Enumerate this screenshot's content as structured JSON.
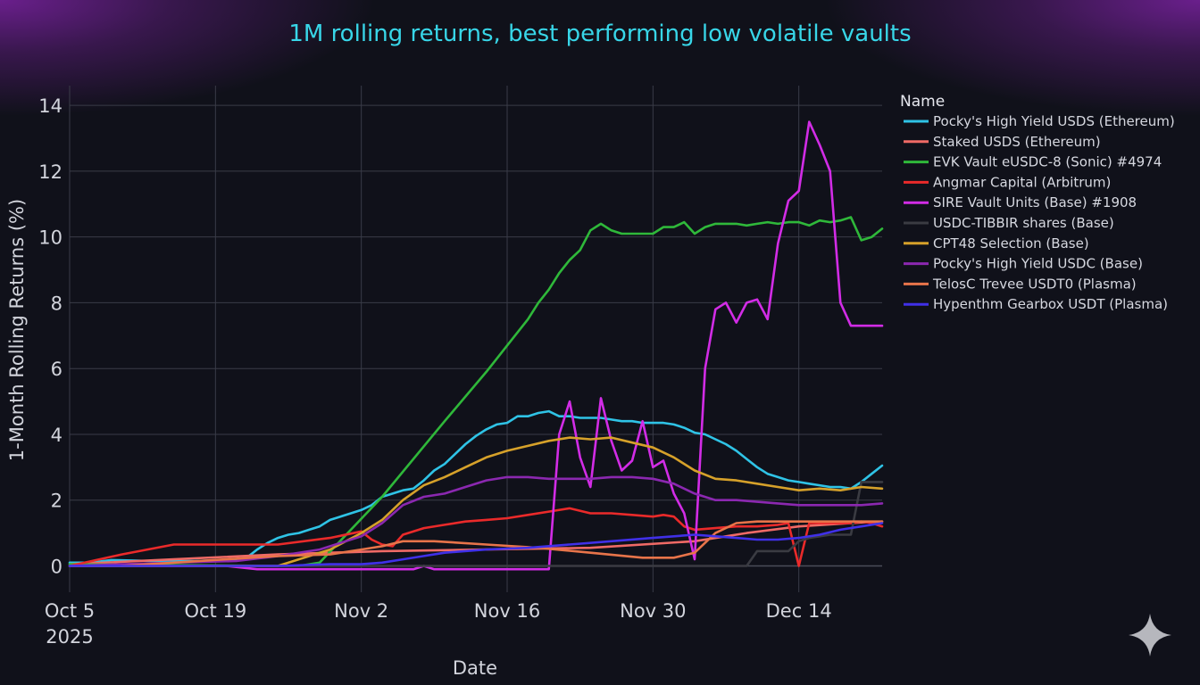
{
  "chart_data": {
    "type": "line",
    "title": "1M rolling returns, best performing low volatile vaults",
    "xlabel": "Date",
    "ylabel": "1-Month Rolling Returns (%)",
    "xlim": [
      0,
      78
    ],
    "ylim": [
      -0.8,
      14.6
    ],
    "yticks": [
      0,
      2,
      4,
      6,
      8,
      10,
      12,
      14
    ],
    "xticks": [
      {
        "day": 0,
        "label": "Oct 5",
        "sublabel": "2025"
      },
      {
        "day": 14,
        "label": "Oct 19"
      },
      {
        "day": 28,
        "label": "Nov 2"
      },
      {
        "day": 42,
        "label": "Nov 16"
      },
      {
        "day": 56,
        "label": "Nov 30"
      },
      {
        "day": 70,
        "label": "Dec 14"
      }
    ],
    "legend_title": "Name",
    "legend_position": "top-right",
    "x_units": "days since Oct 5, 2025",
    "series": [
      {
        "name": "Pocky's High Yield USDS (Ethereum)",
        "color": "#2fc3e6",
        "x": [
          0,
          2,
          4,
          8,
          12,
          16,
          17,
          18,
          19,
          20,
          21,
          22,
          23,
          24,
          25,
          26,
          27,
          28,
          29,
          30,
          31,
          32,
          33,
          34,
          35,
          36,
          37,
          38,
          39,
          40,
          41,
          42,
          43,
          44,
          45,
          46,
          47,
          48,
          49,
          50,
          51,
          52,
          53,
          54,
          55,
          56,
          57,
          58,
          59,
          60,
          61,
          62,
          63,
          64,
          65,
          66,
          67,
          68,
          69,
          70,
          71,
          72,
          73,
          74,
          75,
          76,
          77,
          78
        ],
        "y": [
          0.1,
          0.1,
          0.18,
          0.15,
          0.15,
          0.2,
          0.25,
          0.5,
          0.7,
          0.85,
          0.95,
          1.0,
          1.1,
          1.2,
          1.4,
          1.5,
          1.6,
          1.7,
          1.85,
          2.1,
          2.2,
          2.3,
          2.35,
          2.6,
          2.9,
          3.1,
          3.4,
          3.7,
          3.95,
          4.15,
          4.3,
          4.35,
          4.55,
          4.55,
          4.65,
          4.7,
          4.55,
          4.55,
          4.5,
          4.5,
          4.5,
          4.45,
          4.4,
          4.4,
          4.35,
          4.35,
          4.35,
          4.3,
          4.2,
          4.05,
          4.0,
          3.85,
          3.7,
          3.5,
          3.25,
          3.0,
          2.8,
          2.7,
          2.6,
          2.55,
          2.5,
          2.45,
          2.4,
          2.4,
          2.35,
          2.55,
          2.8,
          3.05
        ]
      },
      {
        "name": "Staked USDS (Ethereum)",
        "color": "#f06a66",
        "x": [
          0,
          10,
          20,
          30,
          40,
          50,
          60,
          65,
          70,
          75,
          78
        ],
        "y": [
          0.05,
          0.2,
          0.35,
          0.45,
          0.5,
          0.55,
          0.75,
          1.0,
          1.2,
          1.3,
          1.35
        ]
      },
      {
        "name": "EVK Vault eUSDC-8 (Sonic) #4974",
        "color": "#2fb83a",
        "x": [
          0,
          20,
          22,
          24,
          30,
          36,
          40,
          44,
          45,
          46,
          47,
          48,
          49,
          50,
          51,
          52,
          53,
          54,
          55,
          56,
          57,
          58,
          59,
          60,
          61,
          62,
          63,
          64,
          65,
          66,
          67,
          68,
          69,
          70,
          71,
          72,
          73,
          74,
          75,
          76,
          77,
          78
        ],
        "y": [
          0.05,
          0.0,
          0.0,
          0.1,
          2.1,
          4.4,
          5.9,
          7.5,
          8.0,
          8.4,
          8.9,
          9.3,
          9.6,
          10.2,
          10.4,
          10.2,
          10.1,
          10.1,
          10.1,
          10.1,
          10.3,
          10.3,
          10.45,
          10.1,
          10.3,
          10.4,
          10.4,
          10.4,
          10.35,
          10.4,
          10.45,
          10.4,
          10.45,
          10.45,
          10.35,
          10.5,
          10.45,
          10.5,
          10.6,
          9.9,
          10.0,
          10.25
        ]
      },
      {
        "name": "Angmar Capital (Arbitrum)",
        "color": "#ea2a2a",
        "x": [
          0,
          5,
          10,
          15,
          20,
          25,
          28,
          29,
          30,
          31,
          32,
          34,
          36,
          38,
          40,
          42,
          44,
          46,
          48,
          50,
          52,
          54,
          56,
          57,
          58,
          59,
          60,
          62,
          64,
          66,
          68,
          69,
          70,
          71,
          72,
          73,
          74,
          75,
          76,
          77,
          78
        ],
        "y": [
          0.0,
          0.35,
          0.65,
          0.65,
          0.65,
          0.85,
          1.05,
          0.8,
          0.65,
          0.6,
          0.95,
          1.15,
          1.25,
          1.35,
          1.4,
          1.45,
          1.55,
          1.65,
          1.75,
          1.6,
          1.6,
          1.55,
          1.5,
          1.55,
          1.5,
          1.2,
          1.1,
          1.15,
          1.2,
          1.2,
          1.25,
          1.3,
          0.0,
          1.3,
          1.3,
          1.3,
          1.3,
          1.3,
          1.35,
          1.3,
          1.2
        ]
      },
      {
        "name": "SIRE Vault Units (Base) #1908",
        "color": "#d22ce6",
        "x": [
          0,
          15,
          18,
          24,
          30,
          33,
          34,
          35,
          36,
          40,
          44,
          46,
          47,
          48,
          49,
          50,
          51,
          52,
          53,
          54,
          55,
          56,
          57,
          58,
          59,
          60,
          61,
          62,
          63,
          64,
          65,
          66,
          67,
          68,
          69,
          70,
          71,
          72,
          73,
          74,
          75,
          76,
          77,
          78
        ],
        "y": [
          0.0,
          0.0,
          -0.1,
          -0.1,
          -0.1,
          -0.1,
          0.0,
          -0.1,
          -0.1,
          -0.1,
          -0.1,
          -0.1,
          4.0,
          5.0,
          3.3,
          2.4,
          5.1,
          3.8,
          2.9,
          3.2,
          4.4,
          3.0,
          3.2,
          2.2,
          1.6,
          0.2,
          6.0,
          7.8,
          8.0,
          7.4,
          8.0,
          8.1,
          7.5,
          9.8,
          11.1,
          11.4,
          13.5,
          12.8,
          12.0,
          8.0,
          7.3,
          7.3,
          7.3,
          7.3
        ]
      },
      {
        "name": "USDC-TIBBIR shares (Base)",
        "color": "#3a3b42",
        "x": [
          0,
          20,
          40,
          60,
          65,
          66,
          67,
          68,
          69,
          70,
          71,
          72,
          73,
          74,
          75,
          76,
          77,
          78
        ],
        "y": [
          0.0,
          0.0,
          0.0,
          0.0,
          0.0,
          0.45,
          0.45,
          0.45,
          0.45,
          0.75,
          0.85,
          0.9,
          0.95,
          0.95,
          0.95,
          2.55,
          2.55,
          2.55
        ]
      },
      {
        "name": "CPT48 Selection (Base)",
        "color": "#d6a12a",
        "x": [
          0,
          20,
          25,
          28,
          30,
          32,
          34,
          36,
          38,
          40,
          42,
          44,
          46,
          48,
          50,
          52,
          54,
          56,
          58,
          60,
          62,
          64,
          66,
          68,
          70,
          72,
          74,
          76,
          78
        ],
        "y": [
          0.0,
          0.0,
          0.5,
          1.0,
          1.4,
          2.0,
          2.45,
          2.7,
          3.0,
          3.3,
          3.5,
          3.65,
          3.8,
          3.9,
          3.85,
          3.9,
          3.75,
          3.6,
          3.3,
          2.9,
          2.65,
          2.6,
          2.5,
          2.4,
          2.3,
          2.35,
          2.3,
          2.4,
          2.35
        ]
      },
      {
        "name": "Pocky's High Yield USDC (Base)",
        "color": "#8b28b0",
        "x": [
          0,
          10,
          16,
          20,
          24,
          28,
          30,
          32,
          34,
          36,
          38,
          40,
          42,
          44,
          46,
          48,
          50,
          52,
          54,
          56,
          58,
          60,
          62,
          64,
          66,
          68,
          70,
          72,
          74,
          76,
          78
        ],
        "y": [
          0.0,
          0.1,
          0.15,
          0.3,
          0.5,
          0.9,
          1.3,
          1.85,
          2.1,
          2.2,
          2.4,
          2.6,
          2.7,
          2.7,
          2.65,
          2.65,
          2.65,
          2.7,
          2.7,
          2.65,
          2.5,
          2.2,
          2.0,
          2.0,
          1.95,
          1.9,
          1.85,
          1.85,
          1.85,
          1.85,
          1.9
        ]
      },
      {
        "name": "TelosC Trevee USDT0 (Plasma)",
        "color": "#e8744a",
        "x": [
          5,
          10,
          15,
          20,
          25,
          28,
          30,
          32,
          35,
          40,
          45,
          50,
          55,
          58,
          60,
          62,
          64,
          66,
          68,
          70,
          72,
          74,
          76,
          78
        ],
        "y": [
          0.0,
          0.1,
          0.2,
          0.3,
          0.35,
          0.5,
          0.6,
          0.75,
          0.75,
          0.65,
          0.55,
          0.4,
          0.25,
          0.25,
          0.4,
          1.0,
          1.3,
          1.35,
          1.35,
          1.35,
          1.35,
          1.35,
          1.35,
          1.35
        ]
      },
      {
        "name": "Hypenthm Gearbox USDT (Plasma)",
        "color": "#4030e8",
        "x": [
          0,
          10,
          20,
          25,
          28,
          30,
          32,
          34,
          36,
          40,
          44,
          48,
          52,
          56,
          60,
          62,
          64,
          66,
          68,
          70,
          72,
          74,
          76,
          78
        ],
        "y": [
          0.0,
          0.0,
          0.0,
          0.05,
          0.05,
          0.1,
          0.2,
          0.3,
          0.4,
          0.5,
          0.55,
          0.65,
          0.75,
          0.85,
          0.95,
          0.9,
          0.85,
          0.8,
          0.8,
          0.85,
          0.95,
          1.1,
          1.2,
          1.3
        ]
      }
    ]
  }
}
